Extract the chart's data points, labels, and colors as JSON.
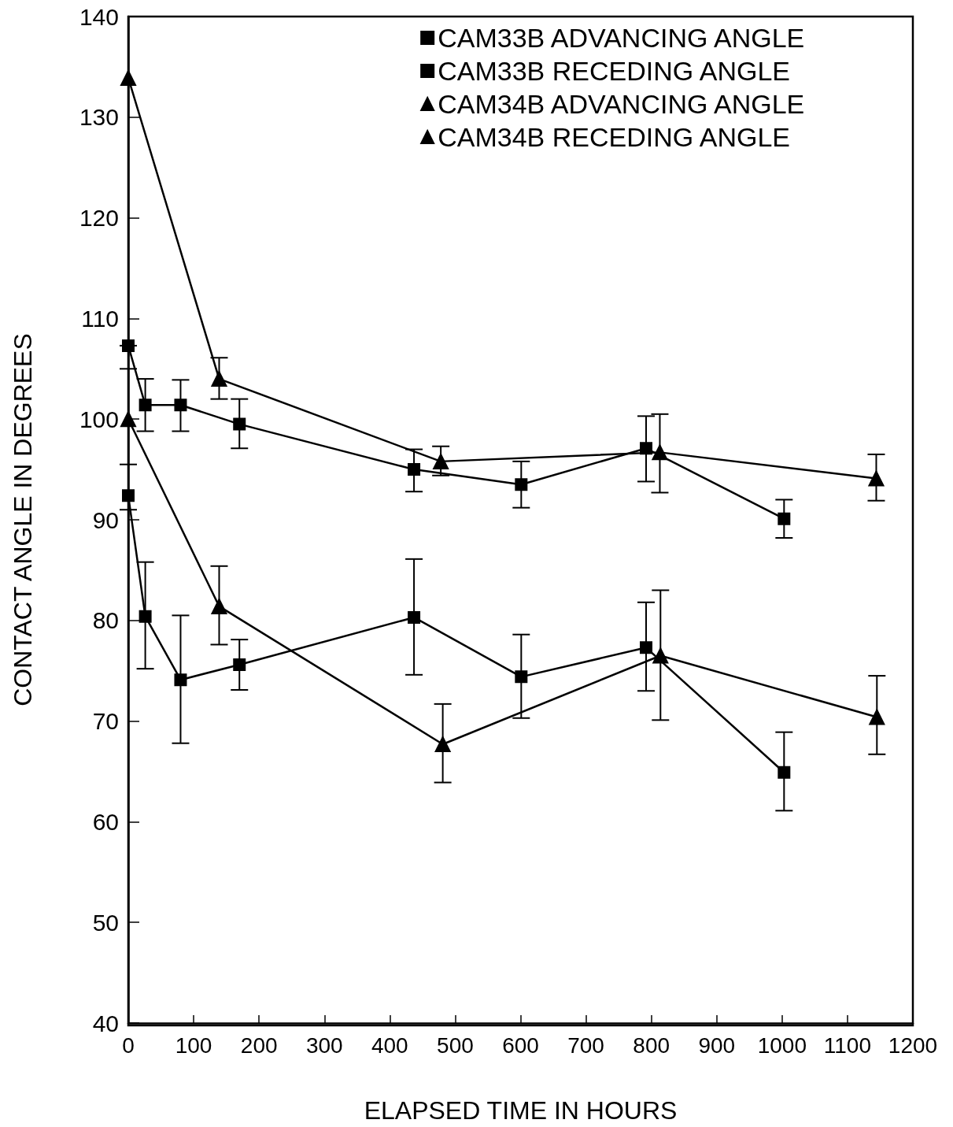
{
  "chart_data": {
    "type": "line",
    "xlabel": "ELAPSED TIME IN HOURS",
    "ylabel": "CONTACT ANGLE IN DEGREES",
    "xlim": [
      0,
      1200
    ],
    "xticks": [
      0,
      100,
      200,
      300,
      400,
      500,
      600,
      700,
      800,
      900,
      1000,
      1100,
      1200
    ],
    "ylim": [
      40,
      140
    ],
    "yticks": [
      40,
      50,
      60,
      70,
      80,
      90,
      100,
      110,
      120,
      130,
      140
    ],
    "grid": false,
    "legend": "top right",
    "line_style": "solid",
    "series": [
      {
        "name": "CAM33B ADVANCING ANGLE",
        "color": "#000000",
        "marker": "square",
        "x": [
          0,
          26,
          80,
          170,
          437,
          601,
          792,
          1003
        ],
        "values": [
          107.3,
          101.4,
          101.4,
          99.5,
          95.0,
          93.5,
          97.1,
          90.1
        ],
        "errors": [
          [
            105.0,
            107.3
          ],
          [
            98.8,
            104.0
          ],
          [
            98.8,
            103.9
          ],
          [
            97.1,
            102.0
          ],
          [
            92.8,
            97.0
          ],
          [
            91.2,
            95.8
          ],
          [
            93.8,
            100.3
          ],
          [
            88.2,
            92.0
          ]
        ]
      },
      {
        "name": "CAM33B RECEDING ANGLE",
        "color": "#000000",
        "marker": "square",
        "x": [
          0,
          26,
          80,
          170,
          437,
          601,
          792,
          1003
        ],
        "values": [
          92.4,
          80.4,
          74.1,
          75.6,
          80.3,
          74.4,
          77.3,
          64.9
        ],
        "errors": [
          [
            91.0,
            95.5
          ],
          [
            75.2,
            85.8
          ],
          [
            67.8,
            80.5
          ],
          [
            73.1,
            78.1
          ],
          [
            74.6,
            86.1
          ],
          [
            70.3,
            78.6
          ],
          [
            73.0,
            81.8
          ],
          [
            61.1,
            68.9
          ]
        ]
      },
      {
        "name": "CAM34B ADVANCING ANGLE",
        "color": "#000000",
        "marker": "triangle",
        "x": [
          0,
          139,
          478,
          813,
          1144
        ],
        "values": [
          133.9,
          104.0,
          95.8,
          96.7,
          94.1
        ],
        "errors": [
          null,
          [
            102.0,
            106.1
          ],
          [
            94.4,
            97.3
          ],
          [
            92.7,
            100.5
          ],
          [
            91.9,
            96.5
          ]
        ]
      },
      {
        "name": "CAM34B RECEDING ANGLE",
        "color": "#000000",
        "marker": "triangle",
        "x": [
          0,
          139,
          481,
          814,
          1145
        ],
        "values": [
          100.0,
          81.4,
          67.7,
          76.5,
          70.4
        ],
        "errors": [
          null,
          [
            77.6,
            85.4
          ],
          [
            63.9,
            71.7
          ],
          [
            70.1,
            83.0
          ],
          [
            66.7,
            74.5
          ]
        ]
      }
    ]
  }
}
